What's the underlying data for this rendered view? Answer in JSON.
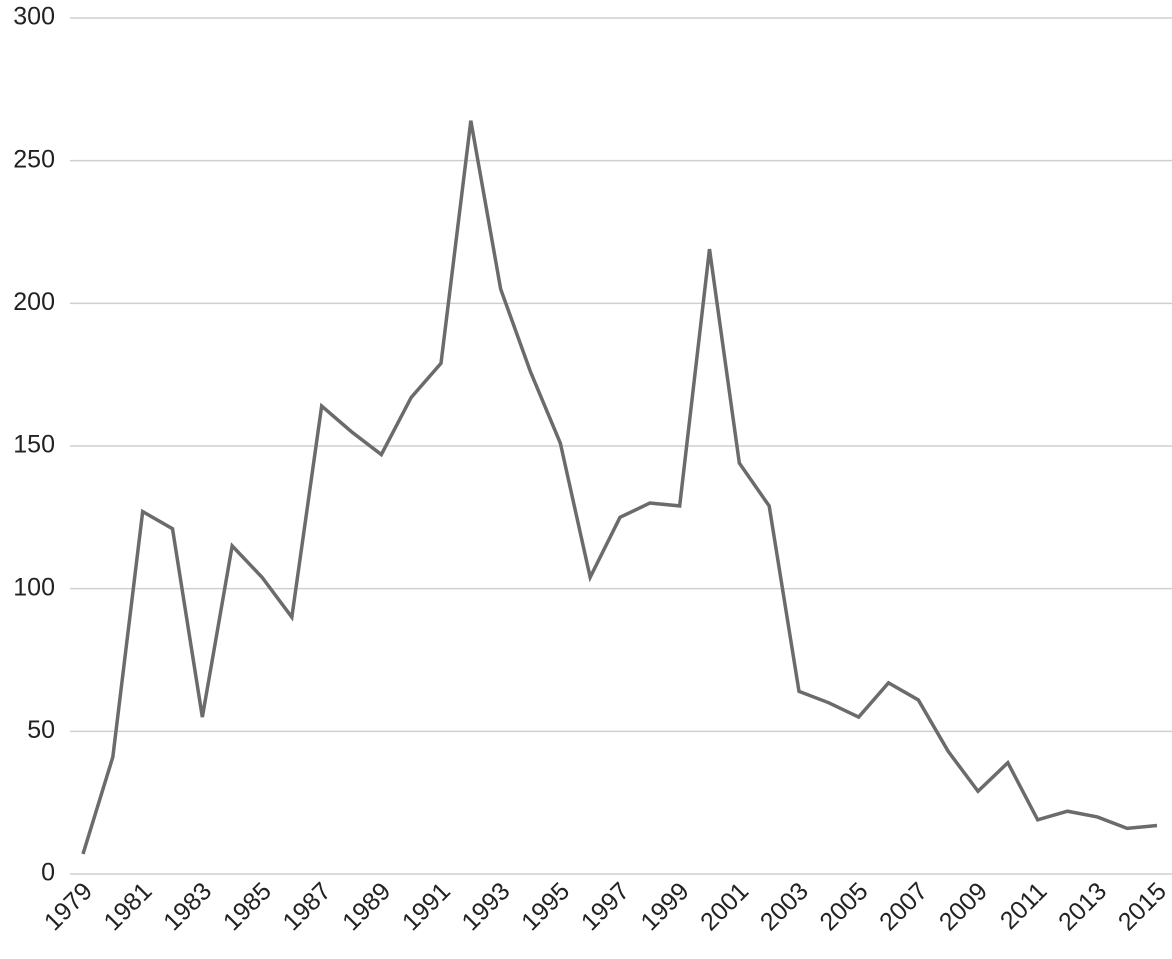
{
  "chart_data": {
    "type": "line",
    "categories": [
      "1979",
      null,
      "1981",
      null,
      "1983",
      null,
      "1985",
      null,
      "1987",
      null,
      "1989",
      null,
      "1991",
      null,
      "1993",
      null,
      "1995",
      null,
      "1997",
      null,
      "1999",
      null,
      "2001",
      null,
      "2003",
      null,
      "2005",
      null,
      "2007",
      null,
      "2009",
      null,
      "2011",
      null,
      "2013",
      null,
      "2015"
    ],
    "series": [
      {
        "color": "#6b6b6d",
        "values": [
          7,
          41,
          127,
          121,
          55,
          115,
          104,
          90,
          164,
          155,
          147,
          167,
          179,
          264,
          205,
          176,
          151,
          104,
          125,
          130,
          129,
          219,
          144,
          129,
          64,
          60,
          55,
          67,
          61,
          43,
          29,
          39,
          19,
          22,
          20,
          16,
          17
        ]
      }
    ],
    "ylim": [
      0,
      300
    ],
    "yticks": [
      0,
      50,
      100,
      150,
      200,
      250,
      300
    ],
    "grid": true
  }
}
